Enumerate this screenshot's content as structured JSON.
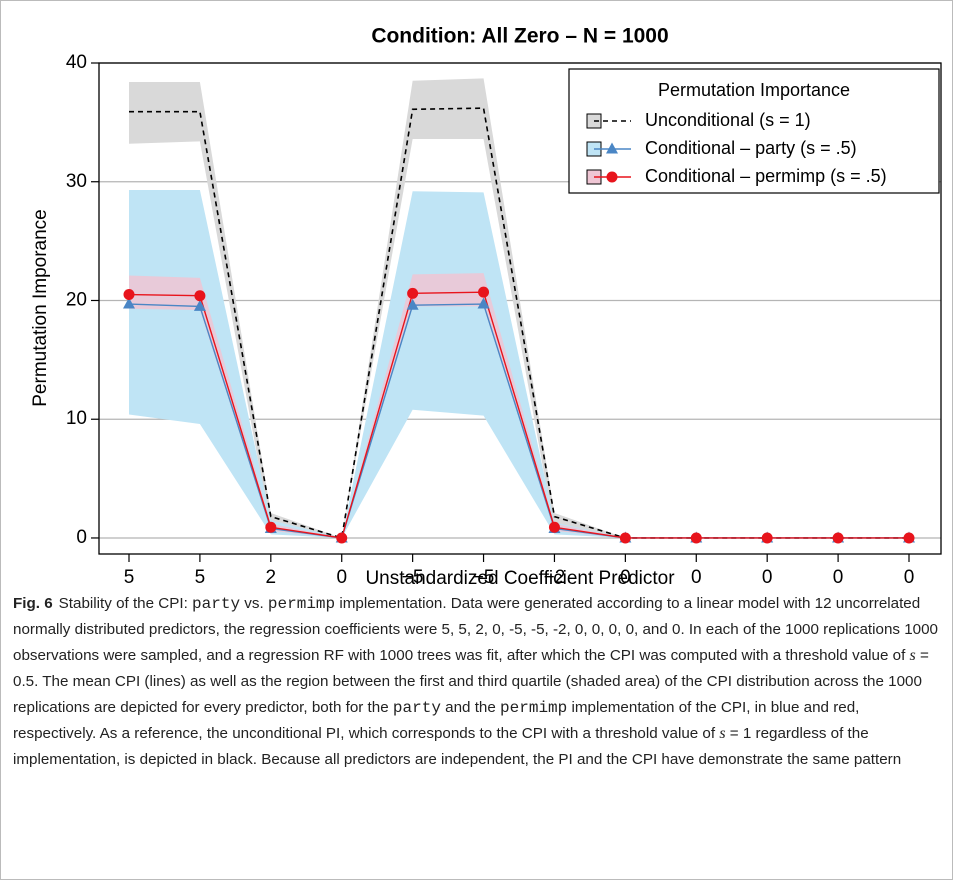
{
  "chart_data": {
    "type": "line",
    "title": "Condition: All Zero – N = 1000",
    "xlabel": "Unstandardized Coefficient Predictor",
    "ylabel": "Permutation Imporance",
    "categories": [
      "5",
      "5",
      "2",
      "0",
      "−5",
      "−5",
      "−2",
      "0",
      "0",
      "0",
      "0",
      "0"
    ],
    "ylim": [
      -1.35,
      40
    ],
    "yticks": [
      0,
      10,
      20,
      30,
      40
    ],
    "grid": true,
    "legend": {
      "title": "Permutation Importance",
      "position": "topright"
    },
    "series": [
      {
        "name": "Unconditional (s = 1)",
        "color": "#000000",
        "fill": "#d9d9d9",
        "dash": true,
        "marker": "none",
        "values": [
          35.9,
          35.9,
          1.8,
          0,
          36.1,
          36.2,
          1.8,
          0,
          0,
          0,
          0,
          0
        ],
        "lower": [
          33.2,
          33.4,
          0.6,
          0,
          33.6,
          33.6,
          0.6,
          0,
          0,
          0,
          0,
          0
        ],
        "upper": [
          38.4,
          38.4,
          2.1,
          0,
          38.5,
          38.7,
          2.1,
          0,
          0,
          0,
          0,
          0
        ]
      },
      {
        "name": "Conditional – party (s = .5)",
        "color": "#4a86c5",
        "fill": "#bfe4f5",
        "dash": false,
        "marker": "triangle",
        "values": [
          19.7,
          19.5,
          0.8,
          0,
          19.6,
          19.7,
          0.8,
          0,
          0,
          0,
          0,
          0
        ],
        "lower": [
          10.4,
          9.6,
          0.3,
          0,
          10.8,
          10.3,
          0.3,
          0,
          0,
          0,
          0,
          0
        ],
        "upper": [
          29.3,
          29.3,
          1.5,
          0,
          29.2,
          29.1,
          1.3,
          0,
          0,
          0,
          0,
          0
        ]
      },
      {
        "name": "Conditional – permimp (s = .5)",
        "color": "#e8141c",
        "fill": "#efc6d4",
        "dash": false,
        "marker": "circle",
        "values": [
          20.5,
          20.4,
          0.9,
          0,
          20.6,
          20.7,
          0.9,
          0,
          0,
          0,
          0,
          0
        ],
        "lower": [
          19.3,
          19.2,
          0.6,
          0,
          19.5,
          19.5,
          0.6,
          0,
          0,
          0,
          0,
          0
        ],
        "upper": [
          22.1,
          21.9,
          1.2,
          0,
          22.2,
          22.3,
          1.2,
          0,
          0,
          0,
          0,
          0
        ]
      }
    ]
  },
  "caption": {
    "label": "Fig. 6",
    "segments": [
      "Stability of the CPI: ",
      "party",
      " vs. ",
      "permimp",
      " implementation. Data were generated according to a linear model with 12 uncorrelated normally distributed predictors, the regression coefficients were 5, 5, 2, 0, -5, -5, -2, 0, 0, 0, 0, and 0. In each of the 1000 replications 1000 observations were sampled, and a regression RF with 1000 trees was fit, after which the CPI was computed with a threshold value of ",
      "s",
      " = 0.5. The mean CPI (lines) as well as the region between the first and third quartile (shaded area) of the CPI distribution across the 1000 replications are depicted for every predictor, both for the ",
      "party",
      " and the ",
      "permimp",
      " implementation of the CPI, in blue and red, respectively. As a reference, the unconditional PI, which corresponds to the CPI with a threshold value of ",
      "s",
      " = 1 regardless of the implementation, is depicted in black. Because all predictors are independent, the PI and the CPI have demonstrate the same pattern"
    ]
  }
}
